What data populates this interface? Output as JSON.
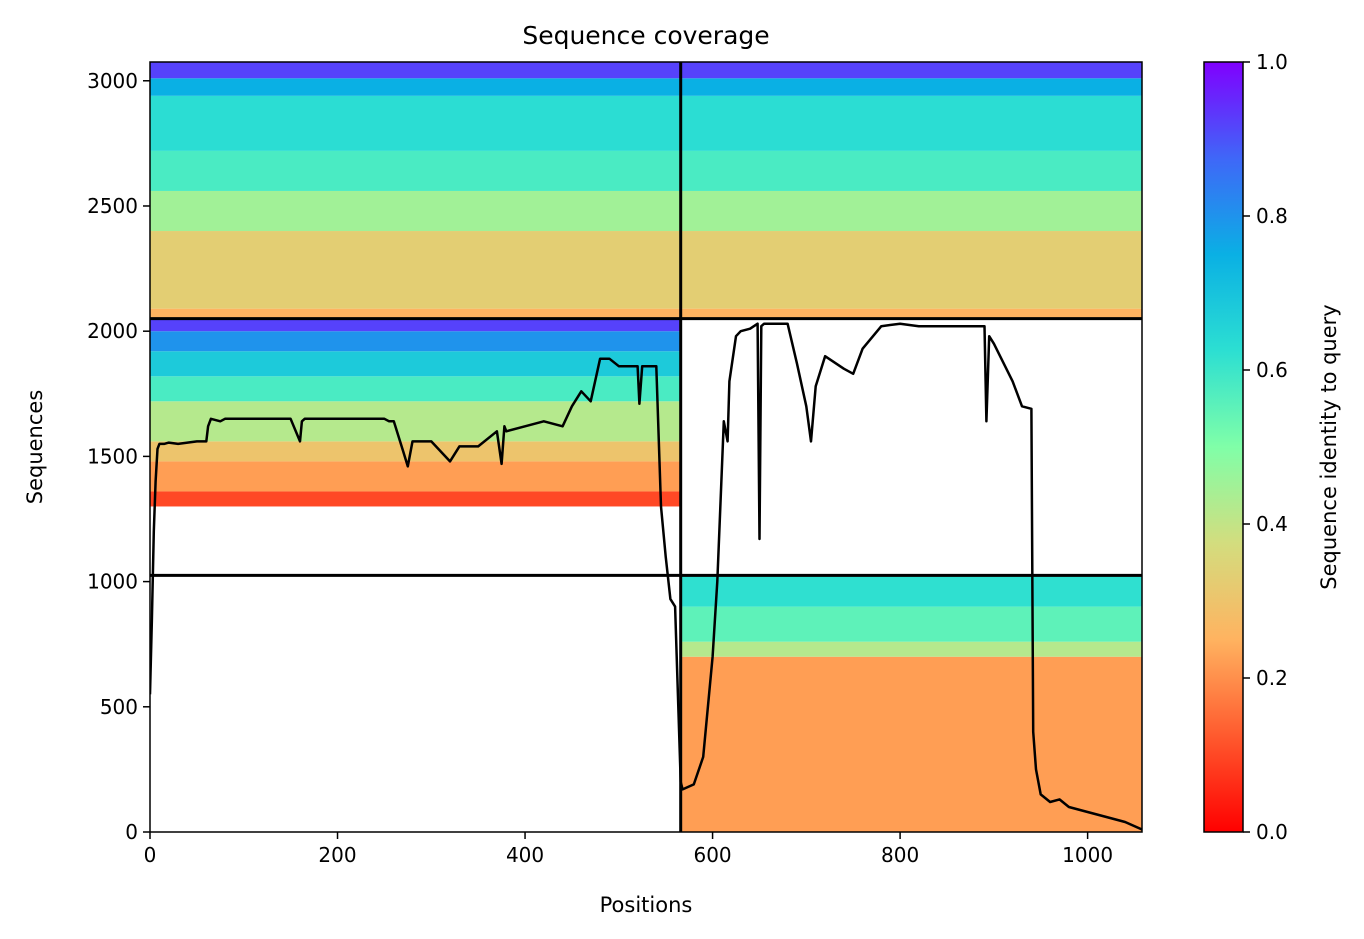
{
  "chart_data": {
    "type": "heatmap",
    "title": "Sequence coverage",
    "xlabel": "Positions",
    "ylabel": "Sequences",
    "colorbar_label": "Sequence identity to query",
    "colormap": "rainbow_r",
    "xlim": [
      0,
      1058
    ],
    "ylim": [
      0,
      3075
    ],
    "xticks": [
      0,
      200,
      400,
      600,
      800,
      1000
    ],
    "yticks": [
      0,
      500,
      1000,
      1500,
      2000,
      2500,
      3000
    ],
    "colorbar_ticks": [
      "0.0",
      "0.2",
      "0.4",
      "0.6",
      "0.8",
      "1.0"
    ],
    "colorbar_range": [
      0,
      1
    ],
    "divider_x": [
      566
    ],
    "divider_y": [
      1025,
      2050
    ],
    "coverage_blocks": [
      {
        "x": [
          0,
          566
        ],
        "y": [
          2050,
          3075
        ],
        "bands": [
          [
            2050,
            2090,
            0.25
          ],
          [
            2090,
            2400,
            0.33
          ],
          [
            2400,
            2560,
            0.45
          ],
          [
            2560,
            2720,
            0.58
          ],
          [
            2720,
            2940,
            0.63
          ],
          [
            2940,
            3010,
            0.75
          ],
          [
            3010,
            3075,
            0.92
          ]
        ]
      },
      {
        "x": [
          566,
          1058
        ],
        "y": [
          2050,
          3075
        ],
        "bands": [
          [
            2050,
            2090,
            0.25
          ],
          [
            2090,
            2400,
            0.33
          ],
          [
            2400,
            2560,
            0.45
          ],
          [
            2560,
            2720,
            0.58
          ],
          [
            2720,
            2940,
            0.63
          ],
          [
            2940,
            3010,
            0.75
          ],
          [
            3010,
            3075,
            0.92
          ]
        ]
      },
      {
        "x": [
          0,
          566
        ],
        "y": [
          1025,
          2050
        ],
        "bands": [
          [
            1300,
            1360,
            0.1
          ],
          [
            1360,
            1480,
            0.22
          ],
          [
            1480,
            1560,
            0.3
          ],
          [
            1560,
            1720,
            0.42
          ],
          [
            1720,
            1820,
            0.58
          ],
          [
            1820,
            1920,
            0.68
          ],
          [
            1920,
            2000,
            0.8
          ],
          [
            2000,
            2050,
            0.92
          ]
        ]
      },
      {
        "x": [
          566,
          1058
        ],
        "y": [
          0,
          1025
        ],
        "bands": [
          [
            0,
            700,
            0.22
          ],
          [
            700,
            760,
            0.42
          ],
          [
            760,
            900,
            0.55
          ],
          [
            900,
            1025,
            0.62
          ]
        ]
      }
    ],
    "coverage_line": {
      "x": [
        0,
        2,
        4,
        6,
        8,
        10,
        15,
        20,
        30,
        50,
        60,
        62,
        65,
        75,
        80,
        100,
        120,
        150,
        160,
        162,
        165,
        170,
        200,
        250,
        255,
        260,
        270,
        275,
        280,
        300,
        320,
        330,
        350,
        370,
        375,
        378,
        380,
        400,
        420,
        440,
        450,
        460,
        470,
        480,
        490,
        500,
        520,
        522,
        525,
        540,
        545,
        550,
        555,
        560,
        566,
        568,
        580,
        590,
        600,
        605,
        612,
        616,
        618,
        625,
        630,
        640,
        648,
        650,
        652,
        655,
        660,
        680,
        690,
        700,
        705,
        710,
        720,
        740,
        750,
        760,
        780,
        800,
        820,
        850,
        880,
        890,
        892,
        895,
        900,
        920,
        930,
        940,
        942,
        945,
        950,
        960,
        970,
        980,
        1000,
        1020,
        1040,
        1058
      ],
      "y": [
        550,
        850,
        1200,
        1400,
        1530,
        1550,
        1550,
        1555,
        1550,
        1560,
        1560,
        1620,
        1650,
        1640,
        1650,
        1650,
        1650,
        1650,
        1560,
        1640,
        1650,
        1650,
        1650,
        1650,
        1640,
        1640,
        1520,
        1460,
        1560,
        1560,
        1480,
        1540,
        1540,
        1600,
        1470,
        1620,
        1600,
        1620,
        1640,
        1620,
        1700,
        1760,
        1720,
        1890,
        1890,
        1860,
        1860,
        1710,
        1860,
        1860,
        1300,
        1100,
        930,
        900,
        200,
        170,
        190,
        300,
        700,
        1000,
        1640,
        1560,
        1800,
        1980,
        2000,
        2010,
        2030,
        1170,
        2020,
        2030,
        2030,
        2030,
        1870,
        1700,
        1560,
        1780,
        1900,
        1850,
        1830,
        1930,
        2020,
        2030,
        2020,
        2020,
        2020,
        2020,
        1640,
        1980,
        1950,
        1800,
        1700,
        1690,
        400,
        250,
        150,
        120,
        130,
        100,
        80,
        60,
        40,
        10
      ]
    }
  }
}
